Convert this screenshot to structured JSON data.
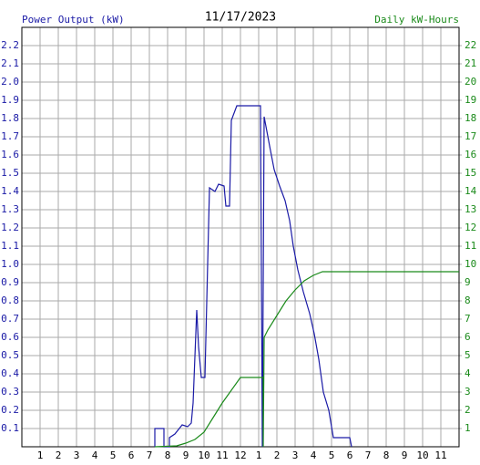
{
  "chart_data": {
    "type": "line",
    "title": "11/17/2023",
    "y_label": "Power Output (kW)",
    "y2_label": "Daily kW-Hours",
    "xlim": [
      0,
      24
    ],
    "xticks": [
      1,
      2,
      3,
      4,
      5,
      6,
      7,
      8,
      9,
      10,
      11,
      12,
      {
        "value": 13,
        "label": "1"
      },
      {
        "value": 14,
        "label": "2"
      },
      {
        "value": 15,
        "label": "3"
      },
      {
        "value": 16,
        "label": "4"
      },
      {
        "value": 17,
        "label": "5"
      },
      {
        "value": 18,
        "label": "6"
      },
      {
        "value": 19,
        "label": "7"
      },
      {
        "value": 20,
        "label": "8"
      },
      {
        "value": 21,
        "label": "9"
      },
      {
        "value": 22,
        "label": "10"
      },
      {
        "value": 23,
        "label": "11"
      }
    ],
    "ylim": [
      0,
      2.3
    ],
    "yticks": [
      0.1,
      0.2,
      0.3,
      0.4,
      0.5,
      0.6,
      0.7,
      0.8,
      0.9,
      {
        "value": 1.0,
        "label": "1.0"
      },
      1.1,
      1.2,
      1.3,
      1.4,
      1.5,
      1.6,
      1.7,
      1.8,
      1.9,
      {
        "value": 2.0,
        "label": "2.0"
      },
      2.1,
      2.2
    ],
    "y2lim": [
      0,
      23
    ],
    "y2ticks": [
      1,
      2,
      3,
      4,
      5,
      6,
      7,
      8,
      9,
      10,
      11,
      12,
      13,
      14,
      15,
      16,
      17,
      18,
      19,
      20,
      21,
      22
    ],
    "grid": true,
    "y_color": "#1a1aa6",
    "y2_color": "#1a8a1a",
    "series": [
      {
        "name": "Power Output (kW)",
        "color": "#1a1aa6",
        "x": [
          7.3,
          7.3,
          7.8,
          7.8,
          8.1,
          8.1,
          8.4,
          8.8,
          9.1,
          9.3,
          9.4,
          9.6,
          9.7,
          9.85,
          10.05,
          10.3,
          10.6,
          10.8,
          11.1,
          11.2,
          11.4,
          11.5,
          11.8,
          13.1,
          13.2,
          13.3,
          13.6,
          13.85,
          14.15,
          14.45,
          14.7,
          14.9,
          15.15,
          15.45,
          15.8,
          16.05,
          16.3,
          16.55,
          16.85,
          17.1,
          18.0,
          18.1
        ],
        "values": [
          0,
          0.1,
          0.1,
          0,
          0,
          0.05,
          0.07,
          0.12,
          0.11,
          0.13,
          0.24,
          0.75,
          0.55,
          0.38,
          0.38,
          1.42,
          1.4,
          1.44,
          1.43,
          1.32,
          1.32,
          1.79,
          1.87,
          1.87,
          0,
          1.81,
          1.65,
          1.52,
          1.43,
          1.35,
          1.24,
          1.1,
          0.97,
          0.85,
          0.73,
          0.62,
          0.48,
          0.3,
          0.2,
          0.05,
          0.05,
          0
        ]
      },
      {
        "name": "Daily kW-Hours",
        "color": "#1a8a1a",
        "axis": "y2",
        "x": [
          7.3,
          8.5,
          9.0,
          9.5,
          10.0,
          10.5,
          11.0,
          11.5,
          12.0,
          13.25,
          13.25,
          13.3,
          13.5,
          14.0,
          14.5,
          15.0,
          15.5,
          16.0,
          16.5,
          24
        ],
        "values": [
          0,
          0.05,
          0.2,
          0.4,
          0.8,
          1.6,
          2.4,
          3.1,
          3.8,
          3.8,
          0,
          6.0,
          6.4,
          7.2,
          8.0,
          8.6,
          9.1,
          9.4,
          9.6,
          9.6
        ]
      }
    ]
  }
}
